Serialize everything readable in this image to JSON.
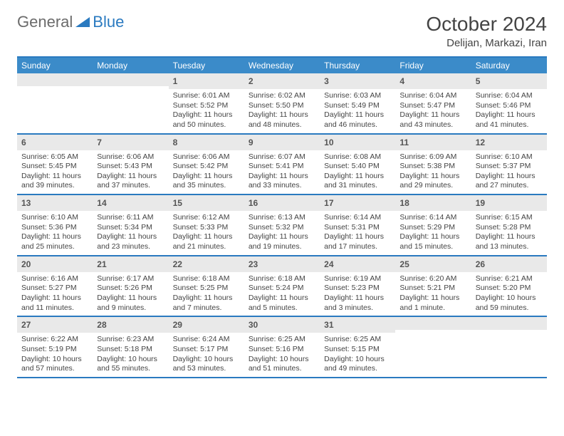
{
  "logo": {
    "text1": "General",
    "text2": "Blue"
  },
  "title": "October 2024",
  "location": "Delijan, Markazi, Iran",
  "colors": {
    "header_bg": "#3b8bc9",
    "border": "#2a7ac0",
    "daynum_bg": "#e9e9e9",
    "text": "#444444",
    "white": "#ffffff"
  },
  "typography": {
    "title_size": 28,
    "location_size": 15,
    "weekday_size": 12,
    "body_size": 10.5
  },
  "weekdays": [
    "Sunday",
    "Monday",
    "Tuesday",
    "Wednesday",
    "Thursday",
    "Friday",
    "Saturday"
  ],
  "weeks": [
    [
      {
        "n": "",
        "sr": "",
        "ss": "",
        "dl": ""
      },
      {
        "n": "",
        "sr": "",
        "ss": "",
        "dl": ""
      },
      {
        "n": "1",
        "sr": "Sunrise: 6:01 AM",
        "ss": "Sunset: 5:52 PM",
        "dl": "Daylight: 11 hours and 50 minutes."
      },
      {
        "n": "2",
        "sr": "Sunrise: 6:02 AM",
        "ss": "Sunset: 5:50 PM",
        "dl": "Daylight: 11 hours and 48 minutes."
      },
      {
        "n": "3",
        "sr": "Sunrise: 6:03 AM",
        "ss": "Sunset: 5:49 PM",
        "dl": "Daylight: 11 hours and 46 minutes."
      },
      {
        "n": "4",
        "sr": "Sunrise: 6:04 AM",
        "ss": "Sunset: 5:47 PM",
        "dl": "Daylight: 11 hours and 43 minutes."
      },
      {
        "n": "5",
        "sr": "Sunrise: 6:04 AM",
        "ss": "Sunset: 5:46 PM",
        "dl": "Daylight: 11 hours and 41 minutes."
      }
    ],
    [
      {
        "n": "6",
        "sr": "Sunrise: 6:05 AM",
        "ss": "Sunset: 5:45 PM",
        "dl": "Daylight: 11 hours and 39 minutes."
      },
      {
        "n": "7",
        "sr": "Sunrise: 6:06 AM",
        "ss": "Sunset: 5:43 PM",
        "dl": "Daylight: 11 hours and 37 minutes."
      },
      {
        "n": "8",
        "sr": "Sunrise: 6:06 AM",
        "ss": "Sunset: 5:42 PM",
        "dl": "Daylight: 11 hours and 35 minutes."
      },
      {
        "n": "9",
        "sr": "Sunrise: 6:07 AM",
        "ss": "Sunset: 5:41 PM",
        "dl": "Daylight: 11 hours and 33 minutes."
      },
      {
        "n": "10",
        "sr": "Sunrise: 6:08 AM",
        "ss": "Sunset: 5:40 PM",
        "dl": "Daylight: 11 hours and 31 minutes."
      },
      {
        "n": "11",
        "sr": "Sunrise: 6:09 AM",
        "ss": "Sunset: 5:38 PM",
        "dl": "Daylight: 11 hours and 29 minutes."
      },
      {
        "n": "12",
        "sr": "Sunrise: 6:10 AM",
        "ss": "Sunset: 5:37 PM",
        "dl": "Daylight: 11 hours and 27 minutes."
      }
    ],
    [
      {
        "n": "13",
        "sr": "Sunrise: 6:10 AM",
        "ss": "Sunset: 5:36 PM",
        "dl": "Daylight: 11 hours and 25 minutes."
      },
      {
        "n": "14",
        "sr": "Sunrise: 6:11 AM",
        "ss": "Sunset: 5:34 PM",
        "dl": "Daylight: 11 hours and 23 minutes."
      },
      {
        "n": "15",
        "sr": "Sunrise: 6:12 AM",
        "ss": "Sunset: 5:33 PM",
        "dl": "Daylight: 11 hours and 21 minutes."
      },
      {
        "n": "16",
        "sr": "Sunrise: 6:13 AM",
        "ss": "Sunset: 5:32 PM",
        "dl": "Daylight: 11 hours and 19 minutes."
      },
      {
        "n": "17",
        "sr": "Sunrise: 6:14 AM",
        "ss": "Sunset: 5:31 PM",
        "dl": "Daylight: 11 hours and 17 minutes."
      },
      {
        "n": "18",
        "sr": "Sunrise: 6:14 AM",
        "ss": "Sunset: 5:29 PM",
        "dl": "Daylight: 11 hours and 15 minutes."
      },
      {
        "n": "19",
        "sr": "Sunrise: 6:15 AM",
        "ss": "Sunset: 5:28 PM",
        "dl": "Daylight: 11 hours and 13 minutes."
      }
    ],
    [
      {
        "n": "20",
        "sr": "Sunrise: 6:16 AM",
        "ss": "Sunset: 5:27 PM",
        "dl": "Daylight: 11 hours and 11 minutes."
      },
      {
        "n": "21",
        "sr": "Sunrise: 6:17 AM",
        "ss": "Sunset: 5:26 PM",
        "dl": "Daylight: 11 hours and 9 minutes."
      },
      {
        "n": "22",
        "sr": "Sunrise: 6:18 AM",
        "ss": "Sunset: 5:25 PM",
        "dl": "Daylight: 11 hours and 7 minutes."
      },
      {
        "n": "23",
        "sr": "Sunrise: 6:18 AM",
        "ss": "Sunset: 5:24 PM",
        "dl": "Daylight: 11 hours and 5 minutes."
      },
      {
        "n": "24",
        "sr": "Sunrise: 6:19 AM",
        "ss": "Sunset: 5:23 PM",
        "dl": "Daylight: 11 hours and 3 minutes."
      },
      {
        "n": "25",
        "sr": "Sunrise: 6:20 AM",
        "ss": "Sunset: 5:21 PM",
        "dl": "Daylight: 11 hours and 1 minute."
      },
      {
        "n": "26",
        "sr": "Sunrise: 6:21 AM",
        "ss": "Sunset: 5:20 PM",
        "dl": "Daylight: 10 hours and 59 minutes."
      }
    ],
    [
      {
        "n": "27",
        "sr": "Sunrise: 6:22 AM",
        "ss": "Sunset: 5:19 PM",
        "dl": "Daylight: 10 hours and 57 minutes."
      },
      {
        "n": "28",
        "sr": "Sunrise: 6:23 AM",
        "ss": "Sunset: 5:18 PM",
        "dl": "Daylight: 10 hours and 55 minutes."
      },
      {
        "n": "29",
        "sr": "Sunrise: 6:24 AM",
        "ss": "Sunset: 5:17 PM",
        "dl": "Daylight: 10 hours and 53 minutes."
      },
      {
        "n": "30",
        "sr": "Sunrise: 6:25 AM",
        "ss": "Sunset: 5:16 PM",
        "dl": "Daylight: 10 hours and 51 minutes."
      },
      {
        "n": "31",
        "sr": "Sunrise: 6:25 AM",
        "ss": "Sunset: 5:15 PM",
        "dl": "Daylight: 10 hours and 49 minutes."
      },
      {
        "n": "",
        "sr": "",
        "ss": "",
        "dl": ""
      },
      {
        "n": "",
        "sr": "",
        "ss": "",
        "dl": ""
      }
    ]
  ]
}
